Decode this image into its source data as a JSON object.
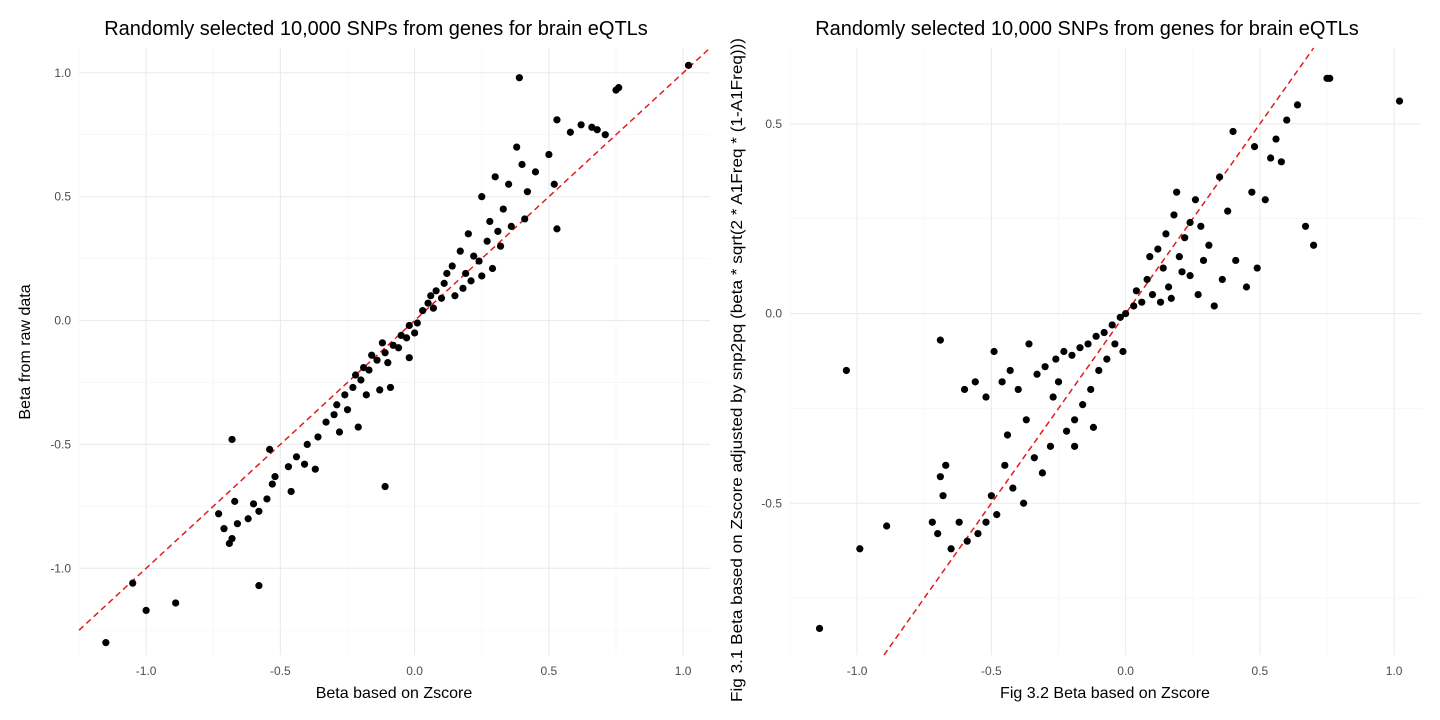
{
  "chart_data": [
    {
      "type": "scatter",
      "title": "Randomly selected 10,000 SNPs from genes for brain eQTLs",
      "xlabel": "Beta based on Zscore",
      "ylabel": "Beta from raw data",
      "xlim": [
        -1.25,
        1.1
      ],
      "ylim": [
        -1.35,
        1.1
      ],
      "xticks": [
        -1.0,
        -0.5,
        0.0,
        0.5,
        1.0
      ],
      "xtick_labels": [
        "-1.0",
        "-0.5",
        "0.0",
        "0.5",
        "1.0"
      ],
      "yticks": [
        -1.0,
        -0.5,
        0.0,
        0.5,
        1.0
      ],
      "ytick_labels": [
        "-1.0",
        "-0.5",
        "0.0",
        "0.5",
        "1.0"
      ],
      "grid": true,
      "reference_line": {
        "style": "dashed",
        "color": "#e41a1c",
        "intercept": 0,
        "slope": 1
      },
      "point_color": "#000000",
      "points": [
        [
          1.02,
          1.03
        ],
        [
          0.76,
          0.94
        ],
        [
          0.75,
          0.93
        ],
        [
          0.39,
          0.98
        ],
        [
          0.53,
          0.81
        ],
        [
          0.62,
          0.79
        ],
        [
          0.66,
          0.78
        ],
        [
          0.68,
          0.77
        ],
        [
          0.71,
          0.75
        ],
        [
          0.58,
          0.76
        ],
        [
          0.5,
          0.67
        ],
        [
          0.45,
          0.6
        ],
        [
          0.4,
          0.63
        ],
        [
          0.52,
          0.55
        ],
        [
          0.38,
          0.7
        ],
        [
          0.42,
          0.52
        ],
        [
          0.35,
          0.55
        ],
        [
          0.3,
          0.58
        ],
        [
          0.25,
          0.5
        ],
        [
          0.33,
          0.45
        ],
        [
          0.28,
          0.4
        ],
        [
          0.36,
          0.38
        ],
        [
          0.41,
          0.41
        ],
        [
          0.53,
          0.37
        ],
        [
          0.32,
          0.3
        ],
        [
          0.27,
          0.32
        ],
        [
          0.2,
          0.35
        ],
        [
          0.22,
          0.26
        ],
        [
          0.17,
          0.28
        ],
        [
          0.14,
          0.22
        ],
        [
          0.19,
          0.19
        ],
        [
          0.25,
          0.18
        ],
        [
          0.29,
          0.21
        ],
        [
          0.11,
          0.15
        ],
        [
          0.08,
          0.12
        ],
        [
          0.15,
          0.1
        ],
        [
          0.05,
          0.07
        ],
        [
          0.03,
          0.04
        ],
        [
          0.07,
          0.05
        ],
        [
          0.1,
          0.09
        ],
        [
          0.21,
          0.16
        ],
        [
          0.12,
          0.19
        ],
        [
          0.06,
          0.1
        ],
        [
          0.18,
          0.13
        ],
        [
          0.24,
          0.24
        ],
        [
          0.31,
          0.36
        ],
        [
          -0.02,
          -0.02
        ],
        [
          -0.05,
          -0.06
        ],
        [
          -0.08,
          -0.1
        ],
        [
          -0.11,
          -0.13
        ],
        [
          -0.14,
          -0.16
        ],
        [
          -0.17,
          -0.2
        ],
        [
          -0.2,
          -0.24
        ],
        [
          -0.23,
          -0.27
        ],
        [
          -0.26,
          -0.3
        ],
        [
          -0.29,
          -0.34
        ],
        [
          -0.12,
          -0.09
        ],
        [
          -0.16,
          -0.14
        ],
        [
          -0.19,
          -0.19
        ],
        [
          -0.22,
          -0.22
        ],
        [
          -0.06,
          -0.11
        ],
        [
          -0.1,
          -0.17
        ],
        [
          -0.03,
          -0.07
        ],
        [
          -0.25,
          -0.36
        ],
        [
          -0.3,
          -0.38
        ],
        [
          -0.33,
          -0.41
        ],
        [
          -0.28,
          -0.45
        ],
        [
          -0.21,
          -0.43
        ],
        [
          -0.18,
          -0.3
        ],
        [
          -0.13,
          -0.28
        ],
        [
          -0.02,
          -0.15
        ],
        [
          -0.36,
          -0.47
        ],
        [
          -0.4,
          -0.5
        ],
        [
          -0.44,
          -0.55
        ],
        [
          -0.47,
          -0.59
        ],
        [
          -0.52,
          -0.63
        ],
        [
          -0.41,
          -0.58
        ],
        [
          -0.46,
          -0.69
        ],
        [
          -0.53,
          -0.66
        ],
        [
          -0.55,
          -0.72
        ],
        [
          -0.58,
          -0.77
        ],
        [
          -0.62,
          -0.8
        ],
        [
          -0.66,
          -0.82
        ],
        [
          -0.68,
          -0.88
        ],
        [
          -0.69,
          -0.9
        ],
        [
          -0.71,
          -0.84
        ],
        [
          -0.73,
          -0.78
        ],
        [
          -0.67,
          -0.73
        ],
        [
          -0.6,
          -0.74
        ],
        [
          -0.68,
          -0.48
        ],
        [
          -0.54,
          -0.52
        ],
        [
          -0.37,
          -0.6
        ],
        [
          -0.11,
          -0.67
        ],
        [
          -0.58,
          -1.07
        ],
        [
          -1.05,
          -1.06
        ],
        [
          -1.0,
          -1.17
        ],
        [
          -0.89,
          -1.14
        ],
        [
          -1.15,
          -1.3
        ],
        [
          -0.09,
          -0.27
        ],
        [
          0.0,
          -0.05
        ],
        [
          0.01,
          -0.01
        ]
      ]
    },
    {
      "type": "scatter",
      "title": "Randomly selected 10,000 SNPs from genes for brain eQTLs",
      "xlabel": "Fig 3.2 Beta based on Zscore",
      "ylabel": "Fig 3.1 Beta based on Zscore adjusted by snp2pq (beta * sqrt(2 * A1Freq * (1-A1Freq)))",
      "xlim": [
        -1.25,
        1.1
      ],
      "ylim": [
        -0.9,
        0.7
      ],
      "xticks": [
        -1.0,
        -0.5,
        0.0,
        0.5,
        1.0
      ],
      "xtick_labels": [
        "-1.0",
        "-0.5",
        "0.0",
        "0.5",
        "1.0"
      ],
      "yticks": [
        -0.5,
        0.0,
        0.5
      ],
      "ytick_labels": [
        "-0.5",
        "0.0",
        "0.5"
      ],
      "grid": true,
      "reference_line": {
        "style": "dashed",
        "color": "#e41a1c",
        "intercept": 0,
        "slope": 1
      },
      "point_color": "#000000",
      "points": [
        [
          0.75,
          0.62
        ],
        [
          0.76,
          0.62
        ],
        [
          1.02,
          0.56
        ],
        [
          0.64,
          0.55
        ],
        [
          0.7,
          0.18
        ],
        [
          0.67,
          0.23
        ],
        [
          0.6,
          0.51
        ],
        [
          0.56,
          0.46
        ],
        [
          0.58,
          0.4
        ],
        [
          0.54,
          0.41
        ],
        [
          0.48,
          0.44
        ],
        [
          0.4,
          0.48
        ],
        [
          0.47,
          0.32
        ],
        [
          0.52,
          0.3
        ],
        [
          0.49,
          0.12
        ],
        [
          0.45,
          0.07
        ],
        [
          0.38,
          0.27
        ],
        [
          0.35,
          0.36
        ],
        [
          0.31,
          0.18
        ],
        [
          0.28,
          0.23
        ],
        [
          0.26,
          0.3
        ],
        [
          0.24,
          0.1
        ],
        [
          0.22,
          0.2
        ],
        [
          0.2,
          0.15
        ],
        [
          0.18,
          0.26
        ],
        [
          0.16,
          0.07
        ],
        [
          0.14,
          0.12
        ],
        [
          0.12,
          0.17
        ],
        [
          0.1,
          0.05
        ],
        [
          0.08,
          0.09
        ],
        [
          0.06,
          0.03
        ],
        [
          0.04,
          0.06
        ],
        [
          0.03,
          0.02
        ],
        [
          0.17,
          0.04
        ],
        [
          0.27,
          0.05
        ],
        [
          0.33,
          0.02
        ],
        [
          0.21,
          0.11
        ],
        [
          0.15,
          0.21
        ],
        [
          0.29,
          0.14
        ],
        [
          0.36,
          0.09
        ],
        [
          0.19,
          0.32
        ],
        [
          0.41,
          0.14
        ],
        [
          -0.02,
          -0.01
        ],
        [
          -0.05,
          -0.03
        ],
        [
          -0.08,
          -0.05
        ],
        [
          -0.11,
          -0.06
        ],
        [
          -0.14,
          -0.08
        ],
        [
          -0.17,
          -0.09
        ],
        [
          -0.2,
          -0.11
        ],
        [
          -0.23,
          -0.1
        ],
        [
          -0.26,
          -0.12
        ],
        [
          -0.3,
          -0.14
        ],
        [
          -0.1,
          -0.15
        ],
        [
          -0.13,
          -0.2
        ],
        [
          -0.16,
          -0.24
        ],
        [
          -0.19,
          -0.28
        ],
        [
          -0.22,
          -0.31
        ],
        [
          -0.07,
          -0.12
        ],
        [
          -0.04,
          -0.08
        ],
        [
          -0.25,
          -0.18
        ],
        [
          -0.33,
          -0.16
        ],
        [
          -0.36,
          -0.08
        ],
        [
          -0.4,
          -0.2
        ],
        [
          -0.43,
          -0.15
        ],
        [
          -0.46,
          -0.18
        ],
        [
          -0.49,
          -0.1
        ],
        [
          -0.52,
          -0.22
        ],
        [
          -0.56,
          -0.18
        ],
        [
          -0.6,
          -0.2
        ],
        [
          -0.28,
          -0.35
        ],
        [
          -0.31,
          -0.42
        ],
        [
          -0.34,
          -0.38
        ],
        [
          -0.38,
          -0.5
        ],
        [
          -0.42,
          -0.46
        ],
        [
          -0.45,
          -0.4
        ],
        [
          -0.48,
          -0.53
        ],
        [
          -0.52,
          -0.55
        ],
        [
          -0.55,
          -0.58
        ],
        [
          -0.59,
          -0.6
        ],
        [
          -0.62,
          -0.55
        ],
        [
          -0.65,
          -0.62
        ],
        [
          -0.68,
          -0.48
        ],
        [
          -0.7,
          -0.58
        ],
        [
          -0.72,
          -0.55
        ],
        [
          -0.67,
          -0.4
        ],
        [
          -0.69,
          -0.43
        ],
        [
          -0.5,
          -0.48
        ],
        [
          -0.44,
          -0.32
        ],
        [
          -0.37,
          -0.28
        ],
        [
          -0.19,
          -0.35
        ],
        [
          -0.12,
          -0.3
        ],
        [
          -0.01,
          -0.1
        ],
        [
          -0.89,
          -0.56
        ],
        [
          -0.99,
          -0.62
        ],
        [
          -1.04,
          -0.15
        ],
        [
          -1.14,
          -0.83
        ],
        [
          -0.69,
          -0.07
        ],
        [
          -0.27,
          -0.22
        ],
        [
          0.0,
          0.0
        ],
        [
          0.09,
          0.15
        ],
        [
          0.13,
          0.03
        ],
        [
          0.24,
          0.24
        ]
      ]
    }
  ]
}
